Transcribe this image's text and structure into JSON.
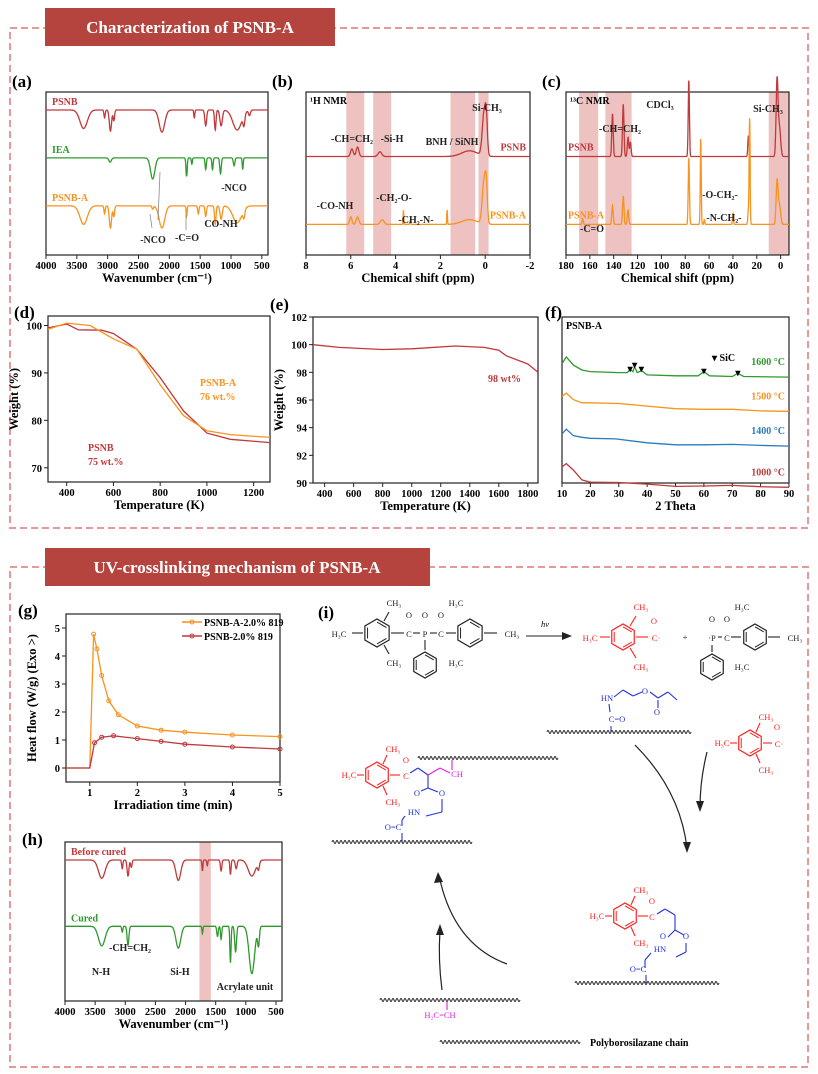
{
  "section1": {
    "title": "Characterization of PSNB-A"
  },
  "section2": {
    "title": "UV-crosslinking mechanism of PSNB-A"
  },
  "colors": {
    "banner": "#b5443f",
    "border": "#e59a98",
    "psnb": "#c0393b",
    "iea": "#2e9a2e",
    "psnb_a": "#f7931e",
    "c1400": "#2b7bbf",
    "highlight": "#e9b3b1",
    "scheme_red": "#ff2020",
    "scheme_blue": "#2233dd",
    "scheme_magenta": "#e020e0"
  },
  "chart_data": [
    {
      "panel": "(a)",
      "type": "line",
      "xlabel": "Wavenumber (cm⁻¹)",
      "xlim": [
        4000,
        400
      ],
      "xticks": [
        4000,
        3500,
        3000,
        2500,
        2000,
        1500,
        1000,
        500
      ],
      "note": "FTIR transmittance, stacked",
      "series": [
        {
          "name": "PSNB",
          "color": "#c0393b",
          "peaks": [
            [
              3390,
              0.35,
              60
            ],
            [
              3050,
              0.15,
              10
            ],
            [
              2955,
              0.4,
              18
            ],
            [
              2900,
              0.2,
              12
            ],
            [
              2120,
              0.42,
              45
            ],
            [
              1595,
              0.15,
              8
            ],
            [
              1410,
              0.3,
              15
            ],
            [
              1255,
              0.38,
              12
            ],
            [
              1160,
              0.3,
              20
            ],
            [
              900,
              0.38,
              70
            ],
            [
              790,
              0.2,
              15
            ],
            [
              700,
              0.1,
              15
            ]
          ]
        },
        {
          "name": "IEA",
          "color": "#2e9a2e",
          "peaks": [
            [
              2960,
              0.08,
              20
            ],
            [
              2270,
              0.4,
              35
            ],
            [
              1720,
              0.35,
              10
            ],
            [
              1635,
              0.12,
              8
            ],
            [
              1410,
              0.22,
              10
            ],
            [
              1300,
              0.22,
              10
            ],
            [
              1170,
              0.3,
              12
            ],
            [
              950,
              0.15,
              12
            ],
            [
              810,
              0.22,
              8
            ]
          ]
        },
        {
          "name": "PSNB-A",
          "color": "#f7931e",
          "peaks": [
            [
              3390,
              0.35,
              60
            ],
            [
              3050,
              0.15,
              10
            ],
            [
              2955,
              0.42,
              18
            ],
            [
              2900,
              0.2,
              12
            ],
            [
              2270,
              0.06,
              12
            ],
            [
              2120,
              0.42,
              45
            ],
            [
              1720,
              0.2,
              8
            ],
            [
              1530,
              0.15,
              10
            ],
            [
              1410,
              0.2,
              12
            ],
            [
              1255,
              0.35,
              12
            ],
            [
              1160,
              0.25,
              18
            ],
            [
              900,
              0.32,
              70
            ],
            [
              790,
              0.15,
              15
            ]
          ]
        }
      ],
      "annotations": [
        "-NCO",
        "-C=O",
        "CO-NH",
        "-NCO"
      ]
    },
    {
      "panel": "(b)",
      "type": "line",
      "title": "¹H NMR",
      "xlabel": "Chemical shift (ppm)",
      "xlim": [
        8,
        -2
      ],
      "xticks": [
        8,
        6,
        4,
        2,
        0,
        -2
      ],
      "highlights": [
        [
          5.4,
          6.2
        ],
        [
          4.2,
          5.0
        ],
        [
          0.45,
          1.55
        ],
        [
          -0.15,
          0.3
        ]
      ],
      "series": [
        {
          "name": "PSNB",
          "color": "#c0393b",
          "peaks": [
            [
              5.95,
              0.08,
              0.06
            ],
            [
              5.7,
              0.1,
              0.06
            ],
            [
              4.7,
              0.05,
              0.08
            ],
            [
              0.7,
              0.06,
              0.35
            ],
            [
              0.05,
              0.45,
              0.08
            ],
            [
              -0.05,
              0.3,
              0.05
            ]
          ]
        },
        {
          "name": "PSNB-A",
          "color": "#f7931e",
          "peaks": [
            [
              6.0,
              0.08,
              0.05
            ],
            [
              5.7,
              0.08,
              0.06
            ],
            [
              4.6,
              0.05,
              0.08
            ],
            [
              3.65,
              0.15,
              0.015
            ],
            [
              3.35,
              0.04,
              0.02
            ],
            [
              1.7,
              0.15,
              0.015
            ],
            [
              0.7,
              0.05,
              0.35
            ],
            [
              0.05,
              0.45,
              0.08
            ],
            [
              -0.05,
              0.3,
              0.05
            ]
          ]
        }
      ],
      "annotations": [
        "-CH=CH₂",
        "-Si-H",
        "BNH / SiNH",
        "Si-CH₃",
        "-CO-NH",
        "-CH₂-O-",
        "-CH₂-N-"
      ]
    },
    {
      "panel": "(c)",
      "type": "line",
      "title": "¹³C NMR",
      "xlabel": "Chemical shift (ppm)",
      "xlim": [
        180,
        -7
      ],
      "xticks": [
        180,
        160,
        140,
        120,
        100,
        80,
        60,
        40,
        20,
        0
      ],
      "highlights": [
        [
          125,
          147
        ],
        [
          -7,
          10
        ],
        [
          153,
          169
        ]
      ],
      "series": [
        {
          "name": "PSNB",
          "color": "#c0393b",
          "peaks": [
            [
              141,
              0.45,
              0.6
            ],
            [
              132,
              0.55,
              0.6
            ],
            [
              128,
              0.2,
              0.6
            ],
            [
              126,
              0.15,
              0.6
            ],
            [
              77,
              0.8,
              0.5
            ],
            [
              27,
              0.22,
              0.5
            ],
            [
              3,
              0.8,
              0.8
            ],
            [
              1,
              0.3,
              1
            ]
          ]
        },
        {
          "name": "PSNB-A",
          "color": "#f7931e",
          "peaks": [
            [
              166,
              0.06,
              0.5
            ],
            [
              141,
              0.2,
              0.6
            ],
            [
              132,
              0.3,
              0.6
            ],
            [
              128,
              0.15,
              0.6
            ],
            [
              77,
              0.7,
              0.5
            ],
            [
              67,
              0.9,
              0.4
            ],
            [
              64,
              0.05,
              0.4
            ],
            [
              40,
              0.12,
              0.4
            ],
            [
              26,
              1.1,
              0.4
            ],
            [
              27,
              0.15,
              0.5
            ],
            [
              3,
              0.45,
              0.8
            ],
            [
              1,
              0.2,
              1
            ]
          ]
        }
      ],
      "annotations": [
        "CDCl₃",
        "-CH=CH₂",
        "Si-CH₃",
        "-O-CH₂-",
        "-N-CH₂-",
        "-C=O"
      ]
    },
    {
      "panel": "(d)",
      "type": "line",
      "xlabel": "Temperature (K)",
      "ylabel": "Weight  (%)",
      "xlim": [
        320,
        1270
      ],
      "ylim": [
        67,
        102
      ],
      "xticks": [
        400,
        600,
        800,
        1000,
        1200
      ],
      "yticks": [
        70,
        80,
        90,
        100
      ],
      "series": [
        {
          "name": "PSNB",
          "label": "75 wt.%",
          "color": "#c0393b",
          "x": [
            320,
            400,
            450,
            550,
            600,
            700,
            800,
            900,
            1000,
            1100,
            1270
          ],
          "y": [
            99.5,
            100.3,
            99.1,
            99,
            98.3,
            95,
            89,
            82,
            77.3,
            76,
            75.3
          ]
        },
        {
          "name": "PSNB-A",
          "label": "76 wt.%",
          "color": "#f7931e",
          "x": [
            320,
            400,
            500,
            600,
            700,
            800,
            900,
            1000,
            1100,
            1270
          ],
          "y": [
            99.2,
            100.5,
            100,
            97.2,
            95,
            87.5,
            81,
            77.8,
            77,
            76.4
          ]
        }
      ]
    },
    {
      "panel": "(e)",
      "type": "line",
      "xlabel": "Temperature (K)",
      "ylabel": "Weight (%)",
      "xlim": [
        320,
        1870
      ],
      "ylim": [
        90,
        102
      ],
      "xticks": [
        400,
        600,
        800,
        1000,
        1200,
        1400,
        1600,
        1800
      ],
      "yticks": [
        90,
        92,
        94,
        96,
        98,
        100,
        102
      ],
      "series": [
        {
          "label": "98 wt%",
          "color": "#c0393b",
          "x": [
            320,
            500,
            800,
            1000,
            1300,
            1500,
            1600,
            1650,
            1800,
            1870
          ],
          "y": [
            100,
            99.8,
            99.65,
            99.7,
            99.9,
            99.8,
            99.6,
            99.2,
            98.6,
            98
          ]
        }
      ]
    },
    {
      "panel": "(f)",
      "type": "line",
      "title": "PSNB-A",
      "xlabel": "2 Theta",
      "xlim": [
        10,
        90
      ],
      "xticks": [
        10,
        20,
        30,
        40,
        50,
        60,
        70,
        80,
        90
      ],
      "legend": "▾ SiC",
      "series": [
        {
          "name": "1600 °C",
          "color": "#2e9a2e",
          "x": [
            10,
            11.5,
            14,
            17,
            20,
            30,
            33,
            34,
            35,
            35.6,
            36.5,
            38,
            40,
            50,
            58,
            60,
            62,
            70,
            72,
            74,
            90
          ],
          "y": [
            0.8,
            1.0,
            0.75,
            0.6,
            0.55,
            0.52,
            0.52,
            0.62,
            0.55,
            0.7,
            0.52,
            0.58,
            0.45,
            0.42,
            0.42,
            0.55,
            0.42,
            0.4,
            0.5,
            0.4,
            0.38
          ]
        },
        {
          "name": "1500 °C",
          "color": "#f7931e",
          "x": [
            10,
            11.5,
            14,
            17,
            20,
            30,
            40,
            50,
            60,
            70,
            80,
            90
          ],
          "y": [
            0.9,
            1.0,
            0.8,
            0.7,
            0.7,
            0.68,
            0.6,
            0.52,
            0.5,
            0.5,
            0.45,
            0.44
          ]
        },
        {
          "name": "1400 °C",
          "color": "#2b7bbf",
          "x": [
            10,
            11.5,
            14,
            17,
            20,
            29,
            40,
            50,
            60,
            70,
            80,
            90
          ],
          "y": [
            0.85,
            1.0,
            0.8,
            0.75,
            0.72,
            0.7,
            0.58,
            0.52,
            0.52,
            0.53,
            0.5,
            0.48
          ]
        },
        {
          "name": "1000 °C",
          "color": "#c0393b",
          "x": [
            10,
            11.5,
            14,
            17,
            20,
            30,
            40,
            50,
            60,
            70,
            80,
            90
          ],
          "y": [
            0.95,
            1.05,
            0.85,
            0.55,
            0.48,
            0.47,
            0.42,
            0.35,
            0.36,
            0.38,
            0.34,
            0.32
          ]
        }
      ],
      "sic_peaks": [
        34,
        35.6,
        38,
        60,
        72
      ]
    },
    {
      "panel": "(g)",
      "type": "line",
      "xlabel": "Irradiation time (min)",
      "ylabel": "Heat flow (W/g) (Exo >)",
      "xlim": [
        0.5,
        5
      ],
      "ylim": [
        -0.5,
        5.5
      ],
      "xticks": [
        1,
        2,
        3,
        4,
        5
      ],
      "yticks": [
        0,
        1,
        2,
        3,
        4,
        5
      ],
      "legend": "top-right",
      "series": [
        {
          "name": "PSNB-A-2.0% 819",
          "color": "#f7931e",
          "x": [
            0.5,
            1,
            1.08,
            1.15,
            1.25,
            1.4,
            1.6,
            2,
            2.5,
            3,
            4,
            5
          ],
          "y": [
            0,
            0,
            4.78,
            4.25,
            3.3,
            2.4,
            1.9,
            1.5,
            1.35,
            1.28,
            1.18,
            1.12
          ]
        },
        {
          "name": "PSNB-2.0% 819",
          "color": "#c0393b",
          "x": [
            0.5,
            1,
            1.1,
            1.25,
            1.5,
            2,
            2.5,
            3,
            4,
            5
          ],
          "y": [
            0,
            0,
            0.9,
            1.1,
            1.15,
            1.05,
            0.95,
            0.85,
            0.75,
            0.68
          ]
        }
      ]
    },
    {
      "panel": "(h)",
      "type": "line",
      "xlabel": "Wavenumber (cm⁻¹)",
      "xlim": [
        4000,
        400
      ],
      "xticks": [
        4000,
        3500,
        3000,
        2500,
        2000,
        1500,
        1000,
        500
      ],
      "highlights": [
        [
          1580,
          1770
        ]
      ],
      "series": [
        {
          "name": "Before cured",
          "color": "#c0393b",
          "peaks": [
            [
              3390,
              0.25,
              55
            ],
            [
              3050,
              0.12,
              10
            ],
            [
              2955,
              0.22,
              15
            ],
            [
              2900,
              0.1,
              12
            ],
            [
              2120,
              0.28,
              40
            ],
            [
              1720,
              0.15,
              8
            ],
            [
              1640,
              0.08,
              8
            ],
            [
              1410,
              0.15,
              12
            ],
            [
              1255,
              0.2,
              10
            ],
            [
              1160,
              0.12,
              15
            ],
            [
              900,
              0.22,
              60
            ],
            [
              790,
              0.1,
              15
            ]
          ]
        },
        {
          "name": "Cured",
          "color": "#2e9a2e",
          "peaks": [
            [
              3390,
              0.27,
              55
            ],
            [
              3050,
              0.08,
              10
            ],
            [
              2955,
              0.26,
              15
            ],
            [
              2120,
              0.3,
              40
            ],
            [
              1720,
              0.1,
              8
            ],
            [
              1470,
              0.14,
              12
            ],
            [
              1410,
              0.18,
              10
            ],
            [
              1255,
              0.5,
              10
            ],
            [
              1170,
              0.35,
              15
            ],
            [
              900,
              0.65,
              45
            ],
            [
              790,
              0.25,
              15
            ]
          ]
        }
      ],
      "annotations": [
        "N-H",
        "-CH=CH₂",
        "Si-H",
        "Acrylate unit"
      ]
    }
  ],
  "scheme": {
    "panel": "(i)",
    "hv": "hv",
    "plus": "+",
    "ch3": "CH₃",
    "h3c": "H₃C",
    "c_radical": "C·",
    "c": "C",
    "p": "P",
    "p_radical": "·P",
    "o": "O",
    "hn": "HN",
    "c_eq_o": "C=O",
    "o_eq_c": "O=C",
    "ch": "CH",
    "h2c_eq_ch": "H₂C=CH",
    "chain_label": "Polyborosilazane chain"
  }
}
